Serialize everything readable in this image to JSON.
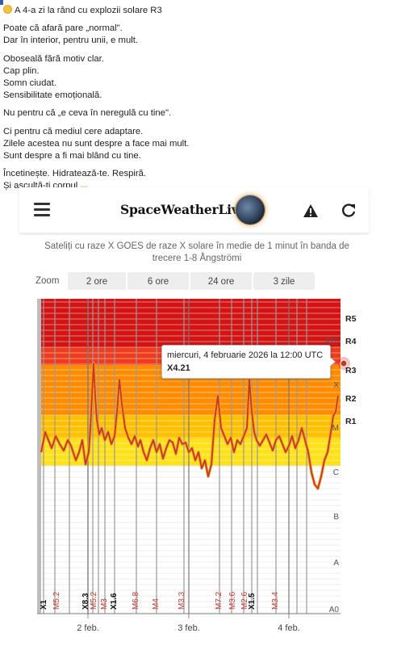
{
  "post": {
    "header": "A 4-a zi la rând cu explozii solare R3",
    "blocks": [
      [
        "Poate că afară pare „normal\".",
        "Dar în interior, pentru unii, e mult."
      ],
      [
        "Oboseală fără motiv clar.",
        "Cap plin.",
        "Somn ciudat.",
        "Sensibilitate emoțională."
      ],
      [
        "Nu pentru că „e ceva în neregulă cu tine\"."
      ],
      [
        "Ci pentru că mediul cere adaptare.",
        "Zilele acestea nu sunt despre a face mai mult.",
        "Sunt despre a fi mai blând cu tine."
      ],
      [
        "Încetinește. Hidratează-te. Respiră.",
        "Și ascultă-ți corpul"
      ]
    ]
  },
  "app": {
    "brand": "SpaceWeatherLive",
    "subtitle": "Sateliți cu raze X GOES de raze X solare în medie de 1 minut în banda de trecere 1-8 Ångströmi",
    "zoom_label": "Zoom",
    "zoom_options": [
      "2 ore",
      "6 ore",
      "24 ore",
      "3 zile"
    ]
  },
  "chart_data": {
    "type": "line",
    "x_tick_labels": [
      "2 feb.",
      "3 feb.",
      "4 feb."
    ],
    "class_labels": [
      "A0",
      "A",
      "B",
      "C",
      "M",
      "X",
      "X10"
    ],
    "radio_labels": [
      "R1",
      "R2",
      "R3",
      "R4",
      "R5"
    ],
    "flare_labels": [
      "X1",
      "M5.2",
      "X8.3",
      "M5.2",
      "M3",
      "X1.6",
      "M6.8",
      "M4",
      "M3.3",
      "M7.2",
      "M3.6",
      "M2.6",
      "X1.5",
      "M3.4"
    ],
    "tooltip": {
      "time": "miercuri, 4 februarie 2026 la 12:00 UTC",
      "value": "X4.21"
    },
    "colors": {
      "R1": "#ffe119",
      "R2": "#ffc000",
      "R3": "#ff8c00",
      "R4": "#f03c1e",
      "R5": "#d21414",
      "line": "#c8381f"
    }
  }
}
